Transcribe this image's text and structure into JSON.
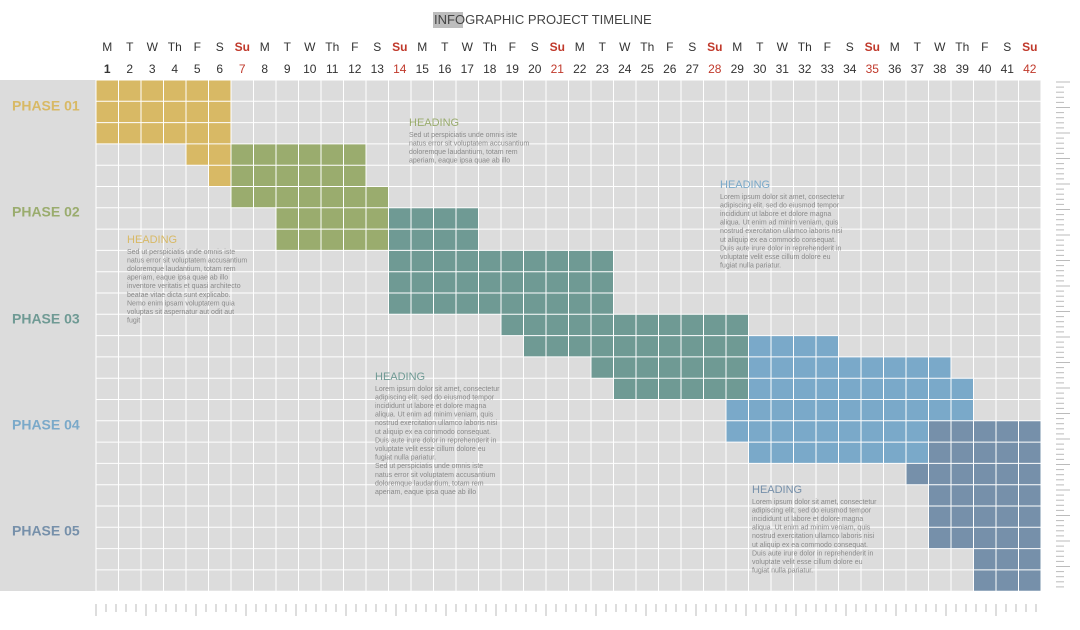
{
  "header": {
    "title_highlight": "INFO",
    "title_rest": "GRAPHIC PROJECT TIMELINE"
  },
  "days": [
    {
      "weekday": "M",
      "number": 1
    },
    {
      "weekday": "T",
      "number": 2
    },
    {
      "weekday": "W",
      "number": 3
    },
    {
      "weekday": "Th",
      "number": 4
    },
    {
      "weekday": "F",
      "number": 5
    },
    {
      "weekday": "S",
      "number": 6
    },
    {
      "weekday": "Su",
      "number": 7
    },
    {
      "weekday": "M",
      "number": 8
    },
    {
      "weekday": "T",
      "number": 9
    },
    {
      "weekday": "W",
      "number": 10
    },
    {
      "weekday": "Th",
      "number": 11
    },
    {
      "weekday": "F",
      "number": 12
    },
    {
      "weekday": "S",
      "number": 13
    },
    {
      "weekday": "Su",
      "number": 14
    },
    {
      "weekday": "M",
      "number": 15
    },
    {
      "weekday": "T",
      "number": 16
    },
    {
      "weekday": "W",
      "number": 17
    },
    {
      "weekday": "Th",
      "number": 18
    },
    {
      "weekday": "F",
      "number": 19
    },
    {
      "weekday": "S",
      "number": 20
    },
    {
      "weekday": "Su",
      "number": 21
    },
    {
      "weekday": "M",
      "number": 22
    },
    {
      "weekday": "T",
      "number": 23
    },
    {
      "weekday": "W",
      "number": 24
    },
    {
      "weekday": "Th",
      "number": 25
    },
    {
      "weekday": "F",
      "number": 26
    },
    {
      "weekday": "S",
      "number": 27
    },
    {
      "weekday": "Su",
      "number": 28
    },
    {
      "weekday": "M",
      "number": 29
    },
    {
      "weekday": "T",
      "number": 30
    },
    {
      "weekday": "W",
      "number": 31
    },
    {
      "weekday": "Th",
      "number": 32
    },
    {
      "weekday": "F",
      "number": 33
    },
    {
      "weekday": "S",
      "number": 34
    },
    {
      "weekday": "Su",
      "number": 35
    },
    {
      "weekday": "M",
      "number": 36
    },
    {
      "weekday": "T",
      "number": 37
    },
    {
      "weekday": "W",
      "number": 38
    },
    {
      "weekday": "Th",
      "number": 39
    },
    {
      "weekday": "F",
      "number": 40
    },
    {
      "weekday": "S",
      "number": 41
    },
    {
      "weekday": "Su",
      "number": 42
    }
  ],
  "phases": [
    {
      "label": "PHASE 01",
      "color": "#d8b965"
    },
    {
      "label": "PHASE 02",
      "color": "#9aac6e"
    },
    {
      "label": "PHASE 03",
      "color": "#6f9a94"
    },
    {
      "label": "PHASE 04",
      "color": "#7aa9c9"
    },
    {
      "label": "PHASE 05",
      "color": "#7690aa"
    }
  ],
  "notes": [
    {
      "heading": "HEADING",
      "lines": [
        "Sed ut perspiciatis unde omnis iste",
        "natus error sit voluptatem accusantium",
        "doloremque laudantium, totam rem",
        "aperiam, eaque ipsa quae ab illo"
      ]
    },
    {
      "heading": "HEADING",
      "lines": [
        "Lorem ipsum dolor sit amet, consectetur",
        "adipiscing elit, sed do eiusmod tempor",
        "incididunt ut labore et dolore magna",
        "aliqua. Ut enim ad minim veniam, quis",
        "nostrud exercitation ullamco laboris nisi",
        "ut aliquip ex ea commodo consequat.",
        "Duis aute irure dolor in reprehenderit in",
        "voluptate velit esse cillum dolore eu",
        "fugiat nulla pariatur."
      ]
    },
    {
      "heading": "HEADING",
      "lines": [
        "Sed ut perspiciatis unde omnis iste",
        "natus error sit voluptatem accusantium",
        "doloremque laudantium, totam rem",
        "aperiam, eaque ipsa quae ab illo",
        "inventore veritatis et quasi architecto",
        "beatae vitae dicta sunt explicabo.",
        "Nemo enim ipsam voluptatem quia",
        "voluptas sit aspernatur aut odit aut",
        "fugit"
      ]
    },
    {
      "heading": "HEADING",
      "lines": [
        "Lorem ipsum dolor sit amet, consectetur",
        "adipiscing elit, sed do eiusmod tempor",
        "incididunt ut labore et dolore magna",
        "aliqua. Ut enim ad minim veniam, quis",
        "nostrud exercitation ullamco laboris nisi",
        "ut aliquip ex ea commodo consequat.",
        "Duis aute irure dolor in reprehenderit in",
        "voluptate velit esse cillum dolore eu",
        "fugiat nulla pariatur.",
        "Sed ut perspiciatis unde omnis iste",
        "natus error sit voluptatem accusantium",
        "doloremque laudantium, totam rem",
        "aperiam, eaque ipsa quae ab illo"
      ]
    },
    {
      "heading": "HEADING",
      "lines": [
        "Lorem ipsum dolor sit amet, consectetur",
        "adipiscing elit, sed do eiusmod tempor",
        "incididunt ut labore et dolore magna",
        "aliqua. Ut enim ad minim veniam, quis",
        "nostrud exercitation ullamco laboris nisi",
        "ut aliquip ex ea commodo consequat.",
        "Duis aute irure dolor in reprehenderit in",
        "voluptate velit esse cillum dolore eu",
        "fugiat nulla pariatur."
      ]
    }
  ]
}
